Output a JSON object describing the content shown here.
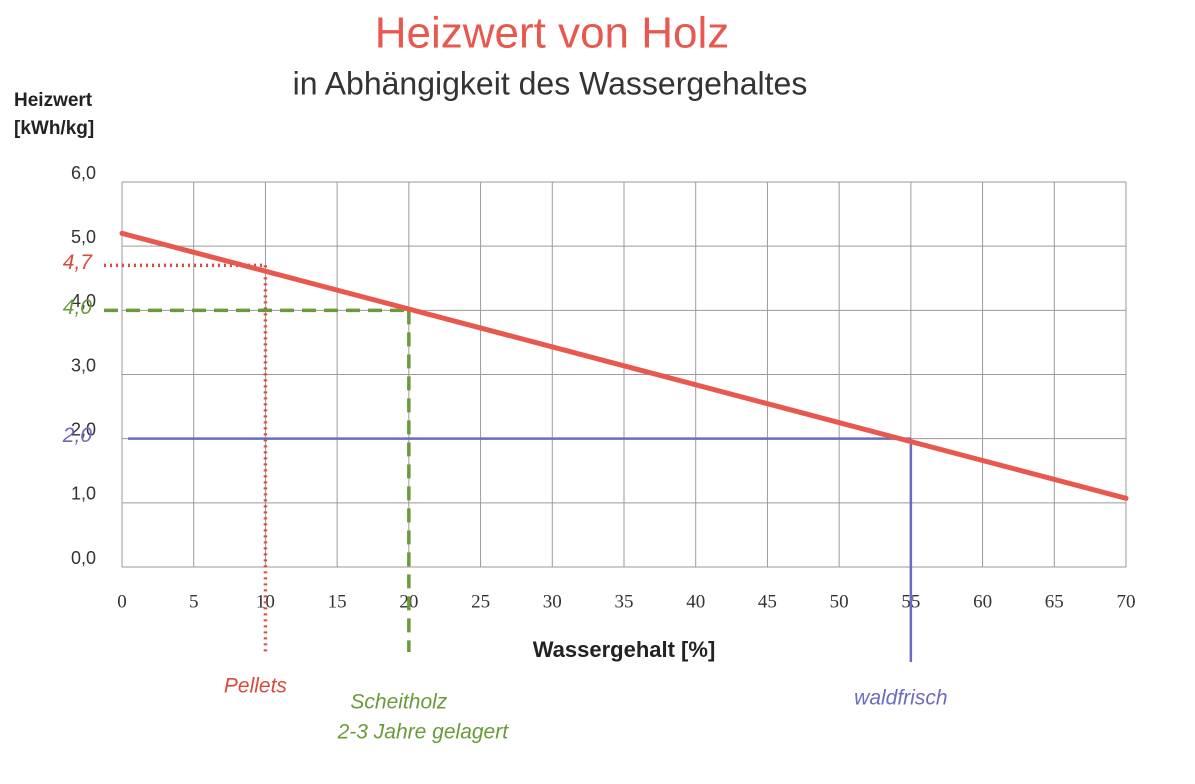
{
  "chart_data": {
    "type": "line",
    "title": "Heizwert von Holz",
    "subtitle": "in Abhängigkeit des Wassergehaltes",
    "ylabel": [
      "Heizwert",
      "[kWh/kg]"
    ],
    "xlabel": "Wassergehalt [%]",
    "x": [
      0,
      70
    ],
    "series": [
      {
        "name": "Heizwert",
        "color": "#e8584f",
        "values": [
          5.2,
          1.07
        ]
      }
    ],
    "xlim": [
      0,
      70
    ],
    "ylim": [
      0,
      6
    ],
    "xticks": [
      0,
      5,
      10,
      15,
      20,
      25,
      30,
      35,
      40,
      45,
      50,
      55,
      60,
      65,
      70
    ],
    "yticks": [
      {
        "value": 0,
        "label": "0,0"
      },
      {
        "value": 1,
        "label": "1,0"
      },
      {
        "value": 2,
        "label": "2,0"
      },
      {
        "value": 3,
        "label": "3,0"
      },
      {
        "value": 4,
        "label": "4,0"
      },
      {
        "value": 5,
        "label": "5,0"
      },
      {
        "value": 6,
        "label": "6,0"
      }
    ],
    "grid": true,
    "markers": [
      {
        "x": 10,
        "y": {
          "value": 4.7,
          "label": "4,7"
        },
        "label": "Pellets",
        "color": "#d94a3f",
        "style": "dotted"
      },
      {
        "x": 20,
        "y": {
          "value": 4.0,
          "label": "4,0"
        },
        "label": "Scheitholz",
        "sublabel": "2-3 Jahre gelagert",
        "color": "#6a9a3a",
        "style": "dashed"
      },
      {
        "x": 55,
        "y": {
          "value": 2.0,
          "label": "2,0"
        },
        "label": "waldfrisch",
        "color": "#6b6bc0",
        "style": "solid"
      }
    ]
  }
}
